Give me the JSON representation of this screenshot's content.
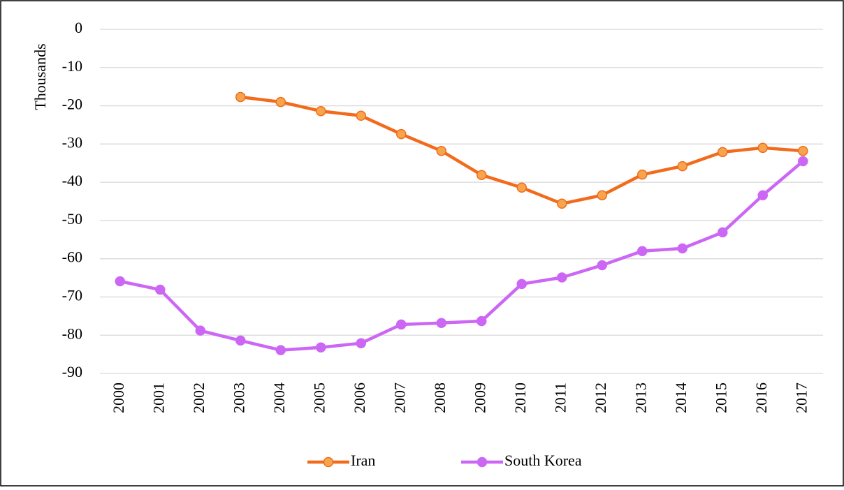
{
  "chart_data": {
    "type": "line",
    "y_label": "Thousands",
    "categories": [
      "2000",
      "2001",
      "2002",
      "2003",
      "2004",
      "2005",
      "2006",
      "2007",
      "2008",
      "2009",
      "2010",
      "2011",
      "2012",
      "2013",
      "2014",
      "2015",
      "2016",
      "2017"
    ],
    "series": [
      {
        "name": "Iran",
        "color": "#f26b1d",
        "marker_color": "#f7a54c",
        "values": [
          null,
          null,
          null,
          -17.7,
          -19.0,
          -21.4,
          -22.6,
          -27.4,
          -31.8,
          -38.1,
          -41.4,
          -45.6,
          -43.4,
          -38.0,
          -35.8,
          -32.1,
          -31.0,
          -31.8
        ]
      },
      {
        "name": "South Korea",
        "color": "#cc66f5",
        "marker_color": "#cc66f5",
        "values": [
          -65.9,
          -68.1,
          -78.8,
          -81.4,
          -83.9,
          -83.2,
          -82.1,
          -77.2,
          -76.8,
          -76.3,
          -66.6,
          -64.9,
          -61.7,
          -58.0,
          -57.3,
          -53.1,
          -43.4,
          -34.5
        ]
      }
    ],
    "ylim": [
      -90,
      0
    ],
    "yticks": [
      0,
      -10,
      -20,
      -30,
      -40,
      -50,
      -60,
      -70,
      -80,
      -90
    ],
    "grid": true,
    "legend": "bottom"
  }
}
